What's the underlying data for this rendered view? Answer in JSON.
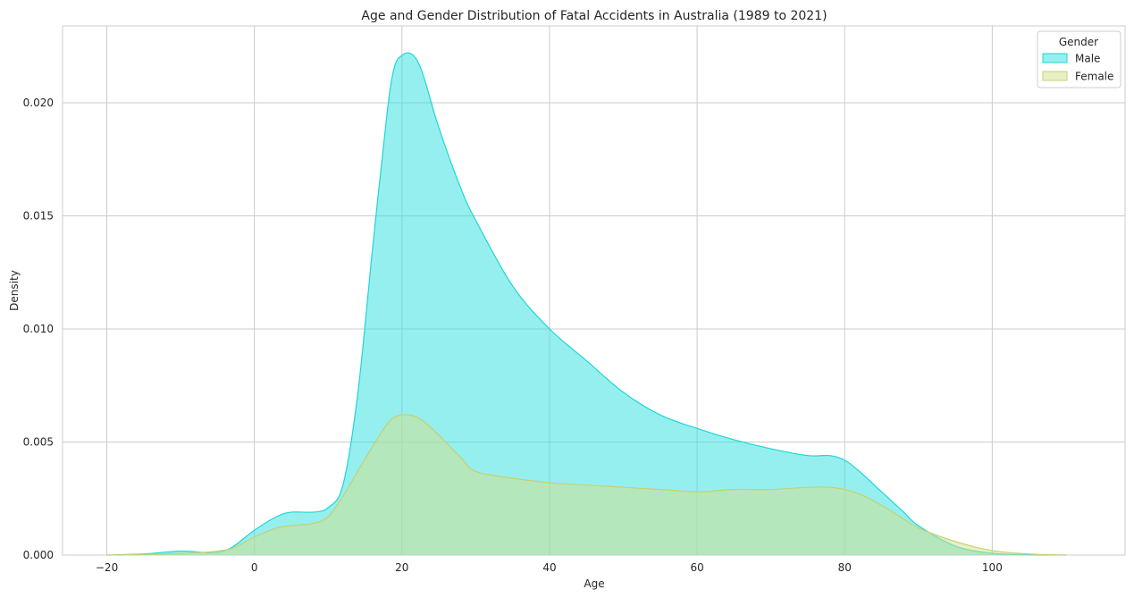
{
  "chart_data": {
    "type": "area",
    "title": "Age and Gender Distribution of Fatal Accidents in Australia (1989 to 2021)",
    "xlabel": "Age",
    "ylabel": "Density",
    "xlim": [
      -26,
      118
    ],
    "ylim": [
      0,
      0.0234
    ],
    "xticks": [
      -20,
      0,
      20,
      40,
      60,
      80,
      100
    ],
    "xtick_labels": [
      "−20",
      "0",
      "20",
      "40",
      "60",
      "80",
      "100"
    ],
    "yticks": [
      0,
      0.005,
      0.01,
      0.015,
      0.02
    ],
    "ytick_labels": [
      "0.000",
      "0.005",
      "0.010",
      "0.015",
      "0.020"
    ],
    "grid": true,
    "legend": {
      "title": "Gender",
      "placement": "top-right"
    },
    "series": [
      {
        "name": "Male",
        "fill": "#2ee0e0",
        "stroke": "#1fd6d6",
        "x": [
          -20,
          -15,
          -10,
          -7,
          -5,
          -3,
          0,
          3,
          5,
          8,
          10,
          12,
          14,
          16,
          18,
          19,
          20,
          21,
          22,
          23,
          25,
          28,
          30,
          35,
          40,
          45,
          50,
          55,
          60,
          65,
          70,
          75,
          78,
          80,
          82,
          85,
          88,
          90,
          95,
          100,
          105,
          110
        ],
        "y": [
          0,
          5e-05,
          0.00018,
          0.00012,
          0.00012,
          0.00035,
          0.0011,
          0.0017,
          0.0019,
          0.0019,
          0.0021,
          0.0031,
          0.0071,
          0.0135,
          0.0196,
          0.0216,
          0.0221,
          0.0222,
          0.0219,
          0.0211,
          0.0189,
          0.0162,
          0.0148,
          0.0119,
          0.01,
          0.0086,
          0.0072,
          0.0062,
          0.0056,
          0.0051,
          0.0047,
          0.0044,
          0.0044,
          0.0042,
          0.0037,
          0.0028,
          0.0019,
          0.0013,
          0.0004,
          8e-05,
          2e-05,
          0
        ]
      },
      {
        "name": "Female",
        "fill": "#d4df8a",
        "stroke": "#c6d070",
        "x": [
          -20,
          -15,
          -10,
          -7,
          -5,
          -3,
          0,
          3,
          5,
          8,
          10,
          12,
          14,
          16,
          18,
          19,
          20,
          21,
          22,
          23,
          25,
          28,
          30,
          35,
          40,
          45,
          50,
          55,
          60,
          65,
          70,
          75,
          78,
          80,
          82,
          85,
          88,
          90,
          95,
          100,
          105,
          110
        ],
        "y": [
          0,
          3e-05,
          8e-05,
          0.00012,
          0.00018,
          0.0003,
          0.0008,
          0.0012,
          0.0013,
          0.0014,
          0.0017,
          0.0026,
          0.0037,
          0.0048,
          0.0058,
          0.0061,
          0.0062,
          0.0062,
          0.0061,
          0.0059,
          0.0053,
          0.0043,
          0.0037,
          0.0034,
          0.0032,
          0.0031,
          0.003,
          0.0029,
          0.0028,
          0.0029,
          0.0029,
          0.003,
          0.003,
          0.0029,
          0.0027,
          0.0022,
          0.0016,
          0.0012,
          0.0006,
          0.0002,
          5e-05,
          0
        ]
      }
    ]
  }
}
